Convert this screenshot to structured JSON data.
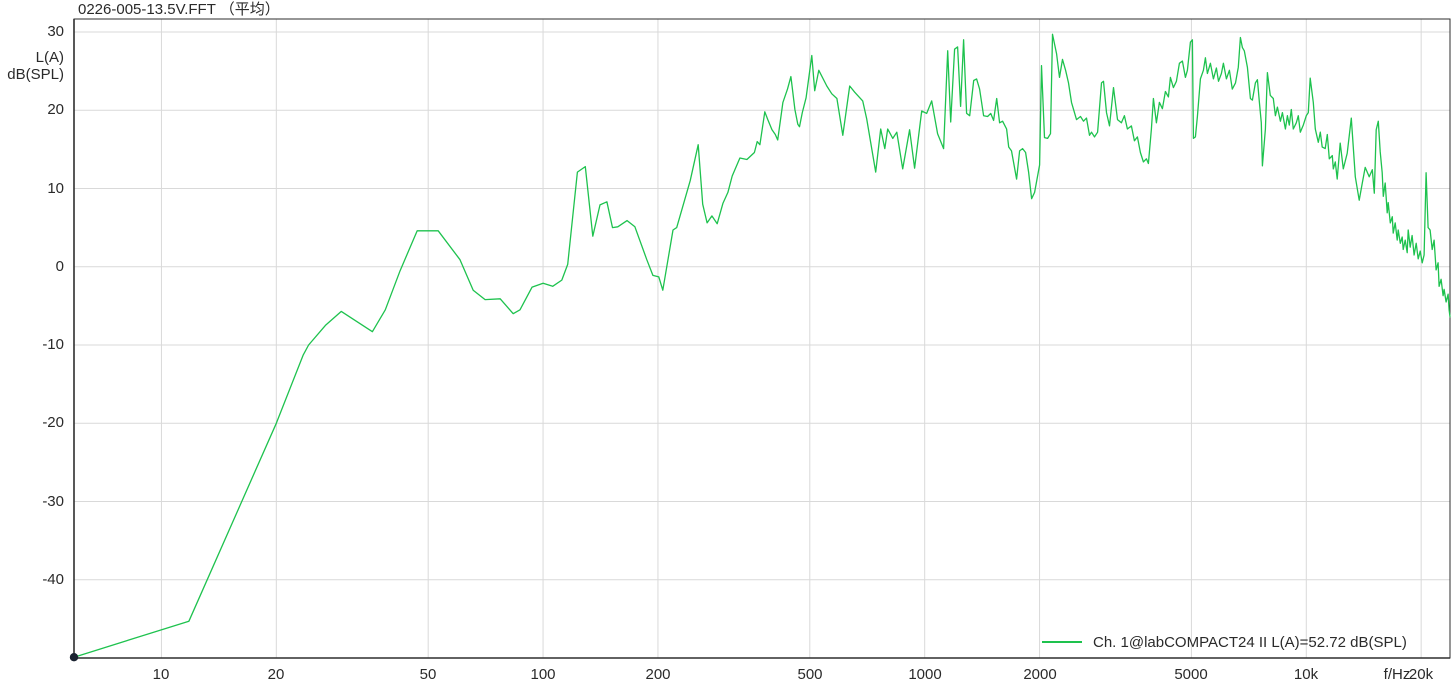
{
  "title": "0226-005-13.5V.FFT （平均）",
  "colors": {
    "trace": "#1EC24E",
    "grid": "#D9D9D9",
    "axis": "#2E2E2E",
    "text": "#2A2A2A",
    "marker": "#1A2230",
    "background": "#FFFFFF"
  },
  "y_axis": {
    "unit_lines": [
      "L(A)",
      "dB(SPL)"
    ],
    "ticks": [
      {
        "db": 30,
        "label": "30"
      },
      {
        "db": 20,
        "label": "20"
      },
      {
        "db": 10,
        "label": "10"
      },
      {
        "db": 0,
        "label": "0"
      },
      {
        "db": -10,
        "label": "-10"
      },
      {
        "db": -20,
        "label": "-20"
      },
      {
        "db": -30,
        "label": "-30"
      },
      {
        "db": -40,
        "label": "-40"
      }
    ]
  },
  "x_axis": {
    "unit_label": "f/Hz",
    "ticks": [
      {
        "f": 10,
        "label": "10"
      },
      {
        "f": 20,
        "label": "20"
      },
      {
        "f": 50,
        "label": "50"
      },
      {
        "f": 100,
        "label": "100"
      },
      {
        "f": 200,
        "label": "200"
      },
      {
        "f": 500,
        "label": "500"
      },
      {
        "f": 1000,
        "label": "1000"
      },
      {
        "f": 2000,
        "label": "2000"
      },
      {
        "f": 5000,
        "label": "5000"
      },
      {
        "f": 10000,
        "label": "10k"
      },
      {
        "f": 20000,
        "label": "20k"
      }
    ]
  },
  "legend": {
    "entries": [
      {
        "label": "Ch. 1@labCOMPACT24 II L(A)=52.72 dB(SPL)",
        "color": "#1EC24E"
      }
    ]
  },
  "chart_data": {
    "type": "line",
    "title": "0226-005-13.5V.FFT （平均）",
    "xlabel": "f/Hz",
    "ylabel": "L(A) dB(SPL)",
    "x_scale": "log",
    "xlim": [
      5.9,
      23800
    ],
    "ylim": [
      -50,
      30
    ],
    "grid": true,
    "legend_position": "bottom-right",
    "marker_point": [
      5.9,
      -49.9
    ],
    "series": [
      {
        "name": "Ch. 1@labCOMPACT24 II L(A)=52.72 dB(SPL)",
        "color": "#1EC24E",
        "points": [
          [
            5.9,
            -49.9
          ],
          [
            11.8,
            -45.3
          ],
          [
            20,
            -20
          ],
          [
            23.5,
            -11.3
          ],
          [
            24.3,
            -10
          ],
          [
            26.9,
            -7.5
          ],
          [
            29.6,
            -5.7
          ],
          [
            35.7,
            -8.3
          ],
          [
            38.6,
            -5.5
          ],
          [
            42.2,
            -0.5
          ],
          [
            46.8,
            4.6
          ],
          [
            53.1,
            4.6
          ],
          [
            60.6,
            0.9
          ],
          [
            65.6,
            -3
          ],
          [
            70.5,
            -4.2
          ],
          [
            77.2,
            -4.1
          ],
          [
            83.5,
            -6
          ],
          [
            87,
            -5.5
          ],
          [
            93.6,
            -2.6
          ],
          [
            100,
            -2.1
          ],
          [
            106,
            -2.5
          ],
          [
            112,
            -1.7
          ],
          [
            116,
            0.3
          ],
          [
            123,
            12.1
          ],
          [
            129,
            12.8
          ],
          [
            135,
            3.9
          ],
          [
            141,
            7.9
          ],
          [
            147,
            8.3
          ],
          [
            152,
            5
          ],
          [
            157,
            5.1
          ],
          [
            166,
            5.9
          ],
          [
            174,
            5.1
          ],
          [
            187,
            0.9
          ],
          [
            194,
            -1.1
          ],
          [
            201,
            -1.3
          ],
          [
            206,
            -3
          ],
          [
            219,
            4.7
          ],
          [
            224,
            5
          ],
          [
            243,
            11
          ],
          [
            255,
            15.6
          ],
          [
            262,
            8
          ],
          [
            269,
            5.6
          ],
          [
            277,
            6.5
          ],
          [
            286,
            5.5
          ],
          [
            296,
            8.1
          ],
          [
            305,
            9.5
          ],
          [
            313,
            11.6
          ],
          [
            328,
            13.9
          ],
          [
            342,
            13.7
          ],
          [
            358,
            14.6
          ],
          [
            364,
            16
          ],
          [
            370,
            15.6
          ],
          [
            381,
            19.8
          ],
          [
            388,
            18.8
          ],
          [
            398,
            17.5
          ],
          [
            406,
            16.9
          ],
          [
            412,
            16.2
          ],
          [
            425,
            21
          ],
          [
            437,
            22.7
          ],
          [
            446,
            24.3
          ],
          [
            457,
            20.1
          ],
          [
            465,
            18.2
          ],
          [
            470,
            17.9
          ],
          [
            478,
            19.7
          ],
          [
            489,
            21.6
          ],
          [
            506,
            27
          ],
          [
            515,
            22.5
          ],
          [
            528,
            25.1
          ],
          [
            554,
            23.1
          ],
          [
            571,
            22.1
          ],
          [
            589,
            21.5
          ],
          [
            610,
            16.8
          ],
          [
            636,
            23.1
          ],
          [
            656,
            22.3
          ],
          [
            688,
            21.2
          ],
          [
            705,
            18.9
          ],
          [
            744,
            12.1
          ],
          [
            767,
            17.6
          ],
          [
            786,
            15.1
          ],
          [
            800,
            17.6
          ],
          [
            825,
            16.4
          ],
          [
            845,
            17.2
          ],
          [
            876,
            12.5
          ],
          [
            913,
            17.5
          ],
          [
            941,
            12.6
          ],
          [
            982,
            19.9
          ],
          [
            1012,
            19.6
          ],
          [
            1043,
            21.2
          ],
          [
            1081,
            17
          ],
          [
            1121,
            15.1
          ],
          [
            1149,
            27.6
          ],
          [
            1170,
            18.5
          ],
          [
            1198,
            27.8
          ],
          [
            1220,
            28.1
          ],
          [
            1242,
            20.5
          ],
          [
            1265,
            29
          ],
          [
            1288,
            19.6
          ],
          [
            1312,
            19.3
          ],
          [
            1344,
            23.8
          ],
          [
            1368,
            24
          ],
          [
            1393,
            22.7
          ],
          [
            1427,
            19.3
          ],
          [
            1462,
            19.2
          ],
          [
            1489,
            19.6
          ],
          [
            1516,
            18.7
          ],
          [
            1544,
            21.5
          ],
          [
            1572,
            18.4
          ],
          [
            1600,
            18.6
          ],
          [
            1639,
            17.6
          ],
          [
            1660,
            15.3
          ],
          [
            1689,
            14.8
          ],
          [
            1741,
            11.2
          ],
          [
            1773,
            14.8
          ],
          [
            1805,
            15.1
          ],
          [
            1838,
            14.6
          ],
          [
            1872,
            12.1
          ],
          [
            1906,
            8.7
          ],
          [
            1941,
            9.5
          ],
          [
            2000,
            13
          ],
          [
            2024,
            25.7
          ],
          [
            2061,
            16.5
          ],
          [
            2099,
            16.4
          ],
          [
            2137,
            17
          ],
          [
            2162,
            29.7
          ],
          [
            2216,
            27.2
          ],
          [
            2256,
            24.2
          ],
          [
            2297,
            26.5
          ],
          [
            2340,
            25.1
          ],
          [
            2382,
            23.5
          ],
          [
            2425,
            21
          ],
          [
            2500,
            18.8
          ],
          [
            2560,
            19.2
          ],
          [
            2607,
            18.6
          ],
          [
            2655,
            19
          ],
          [
            2703,
            16.8
          ],
          [
            2736,
            17.2
          ],
          [
            2786,
            16.6
          ],
          [
            2838,
            17.2
          ],
          [
            2906,
            23.5
          ],
          [
            2941,
            23.7
          ],
          [
            2995,
            19.7
          ],
          [
            3050,
            18
          ],
          [
            3124,
            22.9
          ],
          [
            3200,
            18.8
          ],
          [
            3277,
            18.4
          ],
          [
            3338,
            19.3
          ],
          [
            3399,
            17.6
          ],
          [
            3482,
            18
          ],
          [
            3545,
            16.1
          ],
          [
            3610,
            16.6
          ],
          [
            3675,
            14.6
          ],
          [
            3743,
            13.4
          ],
          [
            3811,
            13.8
          ],
          [
            3858,
            13.2
          ],
          [
            3928,
            17.6
          ],
          [
            3976,
            21.5
          ],
          [
            4048,
            18.4
          ],
          [
            4122,
            21
          ],
          [
            4197,
            20.2
          ],
          [
            4273,
            22.4
          ],
          [
            4351,
            21.7
          ],
          [
            4404,
            24.2
          ],
          [
            4486,
            22.9
          ],
          [
            4567,
            23.7
          ],
          [
            4650,
            26
          ],
          [
            4735,
            26.3
          ],
          [
            4822,
            24.2
          ],
          [
            4880,
            25.1
          ],
          [
            4970,
            28.7
          ],
          [
            5030,
            29
          ],
          [
            5059,
            16.4
          ],
          [
            5122,
            16.6
          ],
          [
            5184,
            19.2
          ],
          [
            5279,
            24
          ],
          [
            5375,
            25.1
          ],
          [
            5439,
            26.7
          ],
          [
            5506,
            24.7
          ],
          [
            5606,
            26
          ],
          [
            5709,
            24
          ],
          [
            5815,
            25.4
          ],
          [
            5886,
            23.7
          ],
          [
            5991,
            24.7
          ],
          [
            6063,
            26
          ],
          [
            6175,
            24
          ],
          [
            6288,
            25.1
          ],
          [
            6400,
            22.7
          ],
          [
            6522,
            23.5
          ],
          [
            6636,
            25.5
          ],
          [
            6719,
            29.3
          ],
          [
            6800,
            28
          ],
          [
            6881,
            27.6
          ],
          [
            7008,
            25.5
          ],
          [
            7137,
            21.5
          ],
          [
            7222,
            21.3
          ],
          [
            7357,
            23.5
          ],
          [
            7444,
            23.9
          ],
          [
            7534,
            21
          ],
          [
            7624,
            18.4
          ],
          [
            7671,
            12.9
          ],
          [
            7812,
            17.6
          ],
          [
            7906,
            24.8
          ],
          [
            8049,
            21.9
          ],
          [
            8196,
            21.5
          ],
          [
            8298,
            19.3
          ],
          [
            8398,
            20.4
          ],
          [
            8552,
            18.6
          ],
          [
            8656,
            19.7
          ],
          [
            8814,
            17.6
          ],
          [
            8921,
            19.3
          ],
          [
            9027,
            18.1
          ],
          [
            9136,
            20.1
          ],
          [
            9246,
            17.6
          ],
          [
            9415,
            18.4
          ],
          [
            9530,
            19.3
          ],
          [
            9645,
            17.2
          ],
          [
            9820,
            18.1
          ],
          [
            10000,
            19.3
          ],
          [
            10120,
            19.7
          ],
          [
            10240,
            24.1
          ],
          [
            10430,
            21
          ],
          [
            10560,
            17.6
          ],
          [
            10750,
            15.9
          ],
          [
            10880,
            17.2
          ],
          [
            11010,
            15.3
          ],
          [
            11210,
            15.1
          ],
          [
            11350,
            16.9
          ],
          [
            11490,
            13.8
          ],
          [
            11700,
            14.2
          ],
          [
            11770,
            12.5
          ],
          [
            11910,
            13.4
          ],
          [
            12050,
            11.2
          ],
          [
            12270,
            15.8
          ],
          [
            12500,
            12.5
          ],
          [
            12800,
            14.5
          ],
          [
            13120,
            19
          ],
          [
            13440,
            11.5
          ],
          [
            13760,
            8.5
          ],
          [
            14020,
            10.7
          ],
          [
            14270,
            12.7
          ],
          [
            14620,
            11.5
          ],
          [
            14890,
            12.4
          ],
          [
            15070,
            9.4
          ],
          [
            15250,
            17.5
          ],
          [
            15440,
            18.6
          ],
          [
            15620,
            14.7
          ],
          [
            15810,
            12
          ],
          [
            15910,
            9
          ],
          [
            16100,
            10.7
          ],
          [
            16290,
            6.9
          ],
          [
            16390,
            8.2
          ],
          [
            16600,
            5.6
          ],
          [
            16800,
            6.4
          ],
          [
            16890,
            4.3
          ],
          [
            17100,
            5.6
          ],
          [
            17310,
            3.4
          ],
          [
            17410,
            4.7
          ],
          [
            17630,
            3
          ],
          [
            17840,
            3.8
          ],
          [
            17940,
            2.2
          ],
          [
            18160,
            3.4
          ],
          [
            18380,
            1.8
          ],
          [
            18490,
            4.7
          ],
          [
            18720,
            2.5
          ],
          [
            18940,
            4
          ],
          [
            19170,
            1.5
          ],
          [
            19410,
            3
          ],
          [
            19640,
            1
          ],
          [
            19880,
            2
          ],
          [
            20120,
            0.5
          ],
          [
            20360,
            1.5
          ],
          [
            20610,
            12
          ],
          [
            20860,
            5
          ],
          [
            21110,
            4.7
          ],
          [
            21370,
            2.2
          ],
          [
            21620,
            3.4
          ],
          [
            21890,
            -0.4
          ],
          [
            22150,
            0.5
          ],
          [
            22290,
            -2.5
          ],
          [
            22560,
            -1.6
          ],
          [
            22830,
            -3.7
          ],
          [
            22970,
            -2.9
          ],
          [
            23250,
            -4.5
          ],
          [
            23530,
            -3.5
          ],
          [
            23670,
            -5.5
          ],
          [
            23820,
            -6.4
          ]
        ]
      }
    ]
  }
}
